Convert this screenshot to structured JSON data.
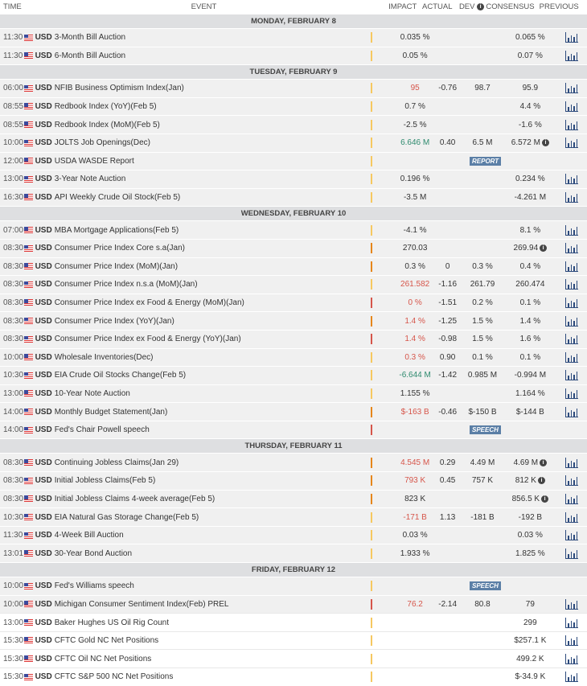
{
  "header": {
    "time": "TIME",
    "event": "EVENT",
    "impact": "IMPACT",
    "actual": "ACTUAL",
    "dev": "DEV",
    "consensus": "CONSENSUS",
    "previous": "PREVIOUS"
  },
  "days": [
    {
      "label": "MONDAY, FEBRUARY 8",
      "rows": [
        {
          "time": "11:30",
          "cur": "USD",
          "event": "3-Month Bill Auction",
          "impact": "low",
          "actual": "0.035 %",
          "previous": "0.065 %",
          "chart": true
        },
        {
          "time": "11:30",
          "cur": "USD",
          "event": "6-Month Bill Auction",
          "impact": "low",
          "actual": "0.05 %",
          "previous": "0.07 %",
          "chart": true
        }
      ]
    },
    {
      "label": "TUESDAY, FEBRUARY 9",
      "rows": [
        {
          "time": "06:00",
          "cur": "USD",
          "event": "NFIB Business Optimism Index(Jan)",
          "impact": "low",
          "actual": "95",
          "actual_color": "red",
          "dev": "-0.76",
          "consensus": "98.7",
          "previous": "95.9",
          "chart": true
        },
        {
          "time": "08:55",
          "cur": "USD",
          "event": "Redbook Index (YoY)(Feb 5)",
          "impact": "low",
          "actual": "0.7 %",
          "previous": "4.4 %",
          "chart": true
        },
        {
          "time": "08:55",
          "cur": "USD",
          "event": "Redbook Index (MoM)(Feb 5)",
          "impact": "low",
          "actual": "-2.5 %",
          "previous": "-1.6 %",
          "chart": true
        },
        {
          "time": "10:00",
          "cur": "USD",
          "event": "JOLTS Job Openings(Dec)",
          "impact": "low",
          "actual": "6.646 M",
          "actual_color": "green",
          "dev": "0.40",
          "consensus": "6.5 M",
          "previous": "6.572 M",
          "info": true,
          "chart": true
        },
        {
          "time": "12:00",
          "cur": "USD",
          "event": "USDA WASDE Report",
          "impact": "low",
          "badge": "REPORT"
        },
        {
          "time": "13:00",
          "cur": "USD",
          "event": "3-Year Note Auction",
          "impact": "low",
          "actual": "0.196 %",
          "previous": "0.234 %",
          "chart": true
        },
        {
          "time": "16:30",
          "cur": "USD",
          "event": "API Weekly Crude Oil Stock(Feb 5)",
          "impact": "low",
          "actual": "-3.5 M",
          "previous": "-4.261 M",
          "chart": true
        }
      ]
    },
    {
      "label": "WEDNESDAY, FEBRUARY 10",
      "rows": [
        {
          "time": "07:00",
          "cur": "USD",
          "event": "MBA Mortgage Applications(Feb 5)",
          "impact": "low",
          "actual": "-4.1 %",
          "previous": "8.1 %",
          "chart": true
        },
        {
          "time": "08:30",
          "cur": "USD",
          "event": "Consumer Price Index Core s.a(Jan)",
          "impact": "medium",
          "actual": "270.03",
          "previous": "269.94",
          "info": true,
          "chart": true
        },
        {
          "time": "08:30",
          "cur": "USD",
          "event": "Consumer Price Index (MoM)(Jan)",
          "impact": "medium",
          "actual": "0.3 %",
          "dev": "0",
          "consensus": "0.3 %",
          "previous": "0.4 %",
          "chart": true
        },
        {
          "time": "08:30",
          "cur": "USD",
          "event": "Consumer Price Index n.s.a (MoM)(Jan)",
          "impact": "low",
          "actual": "261.582",
          "actual_color": "red",
          "dev": "-1.16",
          "consensus": "261.79",
          "previous": "260.474",
          "chart": true
        },
        {
          "time": "08:30",
          "cur": "USD",
          "event": "Consumer Price Index ex Food & Energy (MoM)(Jan)",
          "impact": "high",
          "actual": "0 %",
          "actual_color": "red",
          "dev": "-1.51",
          "consensus": "0.2 %",
          "previous": "0.1 %",
          "chart": true
        },
        {
          "time": "08:30",
          "cur": "USD",
          "event": "Consumer Price Index (YoY)(Jan)",
          "impact": "medium",
          "actual": "1.4 %",
          "actual_color": "red",
          "dev": "-1.25",
          "consensus": "1.5 %",
          "previous": "1.4 %",
          "chart": true
        },
        {
          "time": "08:30",
          "cur": "USD",
          "event": "Consumer Price Index ex Food & Energy (YoY)(Jan)",
          "impact": "high",
          "actual": "1.4 %",
          "actual_color": "red",
          "dev": "-0.98",
          "consensus": "1.5 %",
          "previous": "1.6 %",
          "chart": true
        },
        {
          "time": "10:00",
          "cur": "USD",
          "event": "Wholesale Inventories(Dec)",
          "impact": "low",
          "actual": "0.3 %",
          "actual_color": "red",
          "dev": "0.90",
          "consensus": "0.1 %",
          "previous": "0.1 %",
          "chart": true
        },
        {
          "time": "10:30",
          "cur": "USD",
          "event": "EIA Crude Oil Stocks Change(Feb 5)",
          "impact": "low",
          "actual": "-6.644 M",
          "actual_color": "green",
          "dev": "-1.42",
          "consensus": "0.985 M",
          "previous": "-0.994 M",
          "chart": true
        },
        {
          "time": "13:00",
          "cur": "USD",
          "event": "10-Year Note Auction",
          "impact": "low",
          "actual": "1.155 %",
          "previous": "1.164 %",
          "chart": true
        },
        {
          "time": "14:00",
          "cur": "USD",
          "event": "Monthly Budget Statement(Jan)",
          "impact": "medium",
          "actual": "$-163 B",
          "actual_color": "red",
          "dev": "-0.46",
          "consensus": "$-150 B",
          "previous": "$-144 B",
          "chart": true
        },
        {
          "time": "14:00",
          "cur": "USD",
          "event": "Fed's Chair Powell speech",
          "impact": "high",
          "badge": "SPEECH"
        }
      ]
    },
    {
      "label": "THURSDAY, FEBRUARY 11",
      "rows": [
        {
          "time": "08:30",
          "cur": "USD",
          "event": "Continuing Jobless Claims(Jan 29)",
          "impact": "medium",
          "actual": "4.545 M",
          "actual_color": "red",
          "dev": "0.29",
          "consensus": "4.49 M",
          "previous": "4.69 M",
          "info": true,
          "chart": true
        },
        {
          "time": "08:30",
          "cur": "USD",
          "event": "Initial Jobless Claims(Feb 5)",
          "impact": "medium",
          "actual": "793 K",
          "actual_color": "red",
          "dev": "0.45",
          "consensus": "757 K",
          "previous": "812 K",
          "info": true,
          "chart": true
        },
        {
          "time": "08:30",
          "cur": "USD",
          "event": "Initial Jobless Claims 4-week average(Feb 5)",
          "impact": "medium",
          "actual": "823 K",
          "previous": "856.5 K",
          "info": true,
          "chart": true
        },
        {
          "time": "10:30",
          "cur": "USD",
          "event": "EIA Natural Gas Storage Change(Feb 5)",
          "impact": "low",
          "actual": "-171 B",
          "actual_color": "red",
          "dev": "1.13",
          "consensus": "-181 B",
          "previous": "-192 B",
          "chart": true
        },
        {
          "time": "11:30",
          "cur": "USD",
          "event": "4-Week Bill Auction",
          "impact": "low",
          "actual": "0.03 %",
          "previous": "0.03 %",
          "chart": true
        },
        {
          "time": "13:01",
          "cur": "USD",
          "event": "30-Year Bond Auction",
          "impact": "low",
          "actual": "1.933 %",
          "previous": "1.825 %",
          "chart": true
        }
      ]
    },
    {
      "label": "FRIDAY, FEBRUARY 12",
      "rows": [
        {
          "time": "10:00",
          "cur": "USD",
          "event": "Fed's Williams speech",
          "impact": "low",
          "badge": "SPEECH"
        },
        {
          "time": "10:00",
          "cur": "USD",
          "event": "Michigan Consumer Sentiment Index(Feb) PREL",
          "impact": "high",
          "actual": "76.2",
          "actual_color": "red",
          "dev": "-2.14",
          "consensus": "80.8",
          "previous": "79",
          "chart": true
        },
        {
          "time": "13:00",
          "cur": "USD",
          "event": "Baker Hughes US Oil Rig Count",
          "impact": "low",
          "previous": "299",
          "chart": true,
          "future": true
        },
        {
          "time": "15:30",
          "cur": "USD",
          "event": "CFTC Gold NC Net Positions",
          "impact": "low",
          "previous": "$257.1 K",
          "chart": true,
          "future": true
        },
        {
          "time": "15:30",
          "cur": "USD",
          "event": "CFTC Oil NC Net Positions",
          "impact": "low",
          "previous": "499.2 K",
          "chart": true,
          "future": true
        },
        {
          "time": "15:30",
          "cur": "USD",
          "event": "CFTC S&P 500 NC Net Positions",
          "impact": "low",
          "previous": "$-34.9 K",
          "chart": true,
          "future": true
        }
      ]
    }
  ]
}
